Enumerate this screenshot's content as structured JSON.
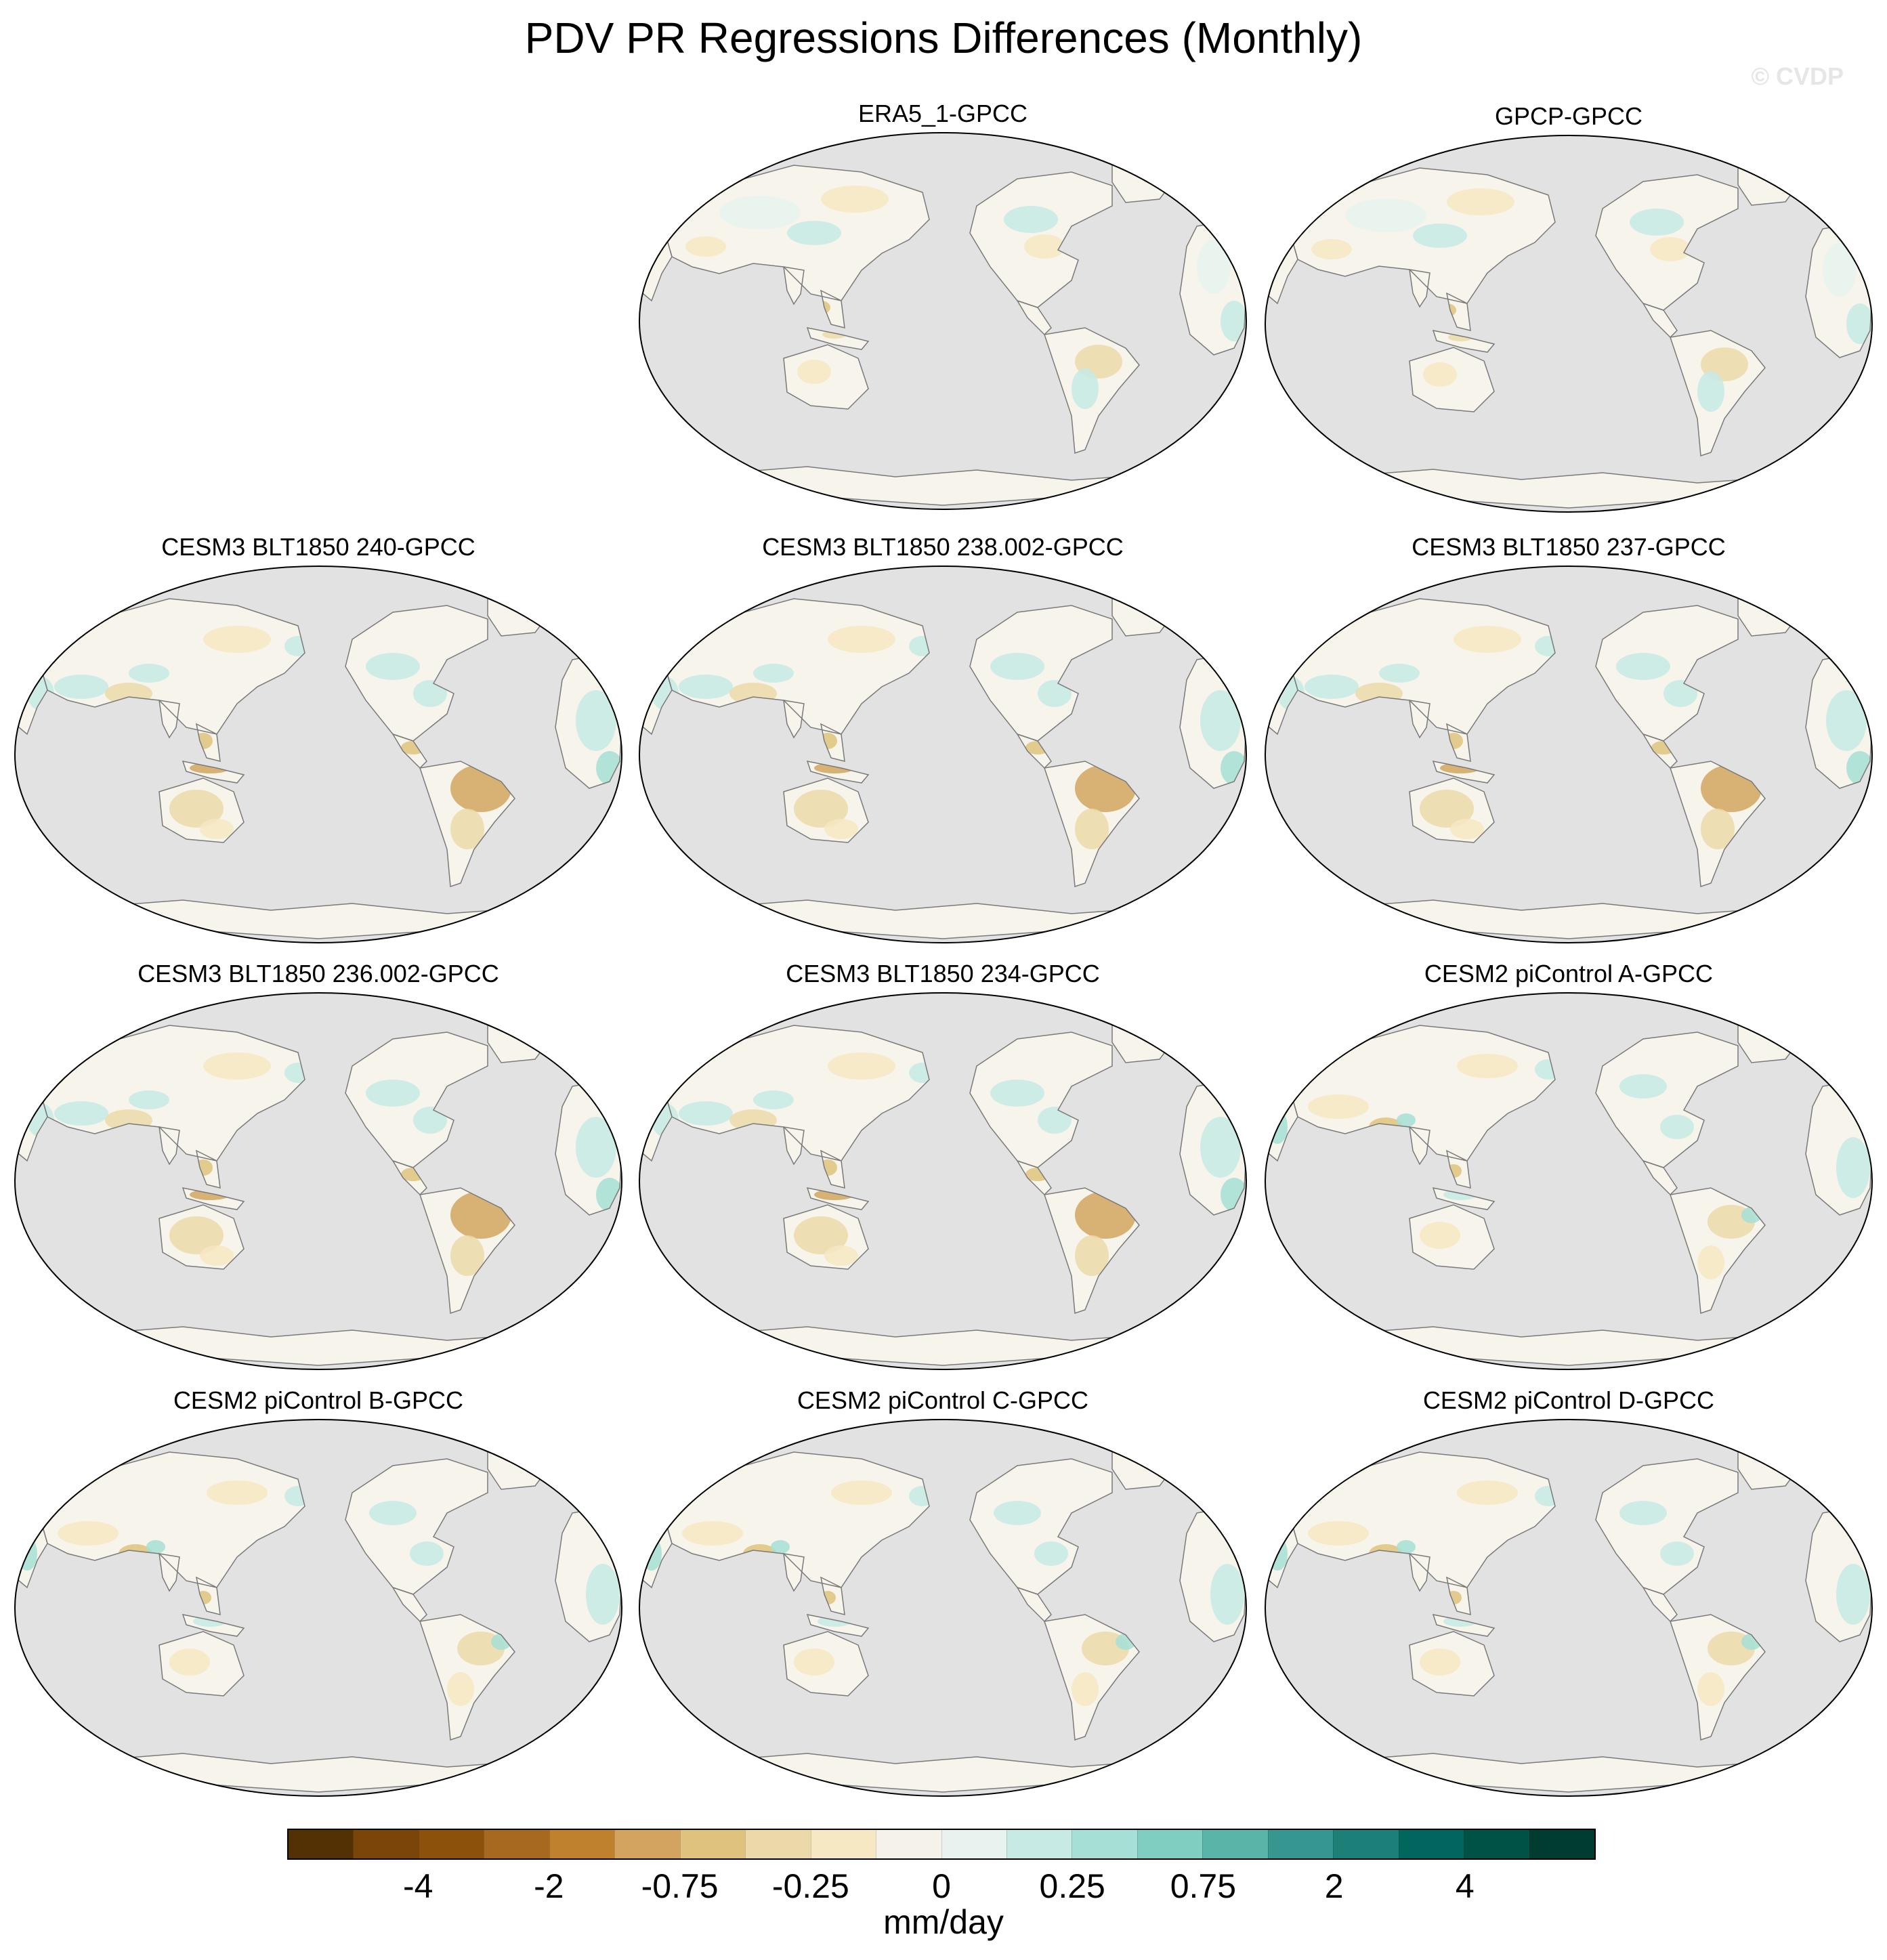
{
  "title": "PDV PR Regressions Differences (Monthly)",
  "watermark": "© CVDP",
  "panels": [
    {
      "label": "ERA5_1-GPCC",
      "pattern": "weak"
    },
    {
      "label": "GPCP-GPCC",
      "pattern": "weak"
    },
    {
      "label": "CESM3 BLT1850 240-GPCC",
      "pattern": "dry"
    },
    {
      "label": "CESM3 BLT1850 238.002-GPCC",
      "pattern": "dry"
    },
    {
      "label": "CESM3 BLT1850 237-GPCC",
      "pattern": "dry"
    },
    {
      "label": "CESM3 BLT1850 236.002-GPCC",
      "pattern": "dry"
    },
    {
      "label": "CESM3 BLT1850 234-GPCC",
      "pattern": "dry"
    },
    {
      "label": "CESM2 piControl A-GPCC",
      "pattern": "mixed"
    },
    {
      "label": "CESM2 piControl B-GPCC",
      "pattern": "mixed"
    },
    {
      "label": "CESM2 piControl C-GPCC",
      "pattern": "mixed"
    },
    {
      "label": "CESM2 piControl D-GPCC",
      "pattern": "mixed"
    }
  ],
  "colorbar": {
    "colors": [
      "#543005",
      "#7a4508",
      "#8c510a",
      "#a6691f",
      "#bf812d",
      "#d2a45f",
      "#dfc27d",
      "#ecd9a9",
      "#f6e8c3",
      "#f5f2ea",
      "#e8f3ef",
      "#c7eae5",
      "#a6dfd6",
      "#80cdc1",
      "#5ab4a7",
      "#35978f",
      "#1d8078",
      "#01665e",
      "#015246",
      "#003c30"
    ],
    "tick_labels": [
      "-4",
      "-2",
      "-0.75",
      "-0.25",
      "0",
      "0.25",
      "0.75",
      "2",
      "4"
    ],
    "units": "mm/day"
  }
}
